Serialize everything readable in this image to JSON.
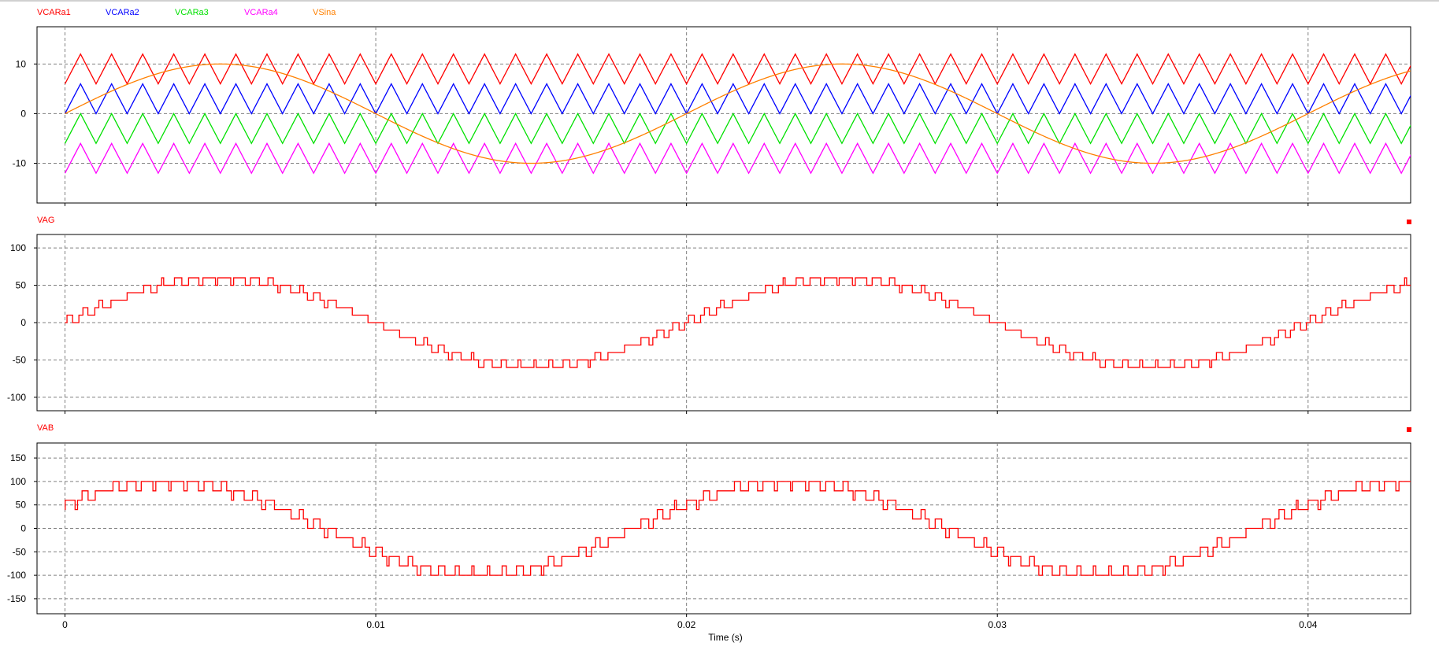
{
  "chart_data": [
    {
      "type": "line",
      "title": "",
      "xlabel": "",
      "ylabel": "",
      "xlim": [
        -0.0009,
        0.0433
      ],
      "ylim": [
        -18,
        17.5
      ],
      "yticks": [
        10,
        0,
        -10
      ],
      "ytick_labels": [
        "10",
        "0",
        "-10"
      ],
      "grid": true,
      "legend": "top-left",
      "series": [
        {
          "name": "VCARa1",
          "color": "#ff0000",
          "waveform": "triangle",
          "min": 6,
          "max": 12,
          "period": 0.001,
          "start_phase": "min"
        },
        {
          "name": "VCARa2",
          "color": "#0000ff",
          "waveform": "triangle",
          "min": 0,
          "max": 6,
          "period": 0.001,
          "start_phase": "min"
        },
        {
          "name": "VCARa3",
          "color": "#00e000",
          "waveform": "triangle",
          "min": -6,
          "max": 0,
          "period": 0.001,
          "start_phase": "min"
        },
        {
          "name": "VCARa4",
          "color": "#ff00ff",
          "waveform": "triangle",
          "min": -12,
          "max": -6,
          "period": 0.001,
          "start_phase": "min"
        },
        {
          "name": "VSina",
          "color": "#ff8000",
          "waveform": "sine",
          "amplitude": 10,
          "frequency_hz": 50
        }
      ]
    },
    {
      "type": "line",
      "title": "",
      "xlabel": "",
      "ylabel": "",
      "xlim": [
        -0.0009,
        0.0433
      ],
      "ylim": [
        -118,
        118
      ],
      "yticks": [
        100,
        50,
        0,
        -50,
        -100
      ],
      "ytick_labels": [
        "100",
        "50",
        "0",
        "-50",
        "-100"
      ],
      "grid": true,
      "legend": "top-left",
      "series": [
        {
          "name": "VAG",
          "color": "#ff0000",
          "waveform": "multilevel-staircase",
          "step": 10,
          "max_level": 60,
          "frequency_hz": 50
        }
      ]
    },
    {
      "type": "line",
      "title": "",
      "xlabel": "Time (s)",
      "ylabel": "",
      "xlim": [
        -0.0009,
        0.0433
      ],
      "ylim": [
        -182,
        182
      ],
      "yticks": [
        150,
        100,
        50,
        0,
        -50,
        -100,
        -150
      ],
      "ytick_labels": [
        "150",
        "100",
        "50",
        "0",
        "-50",
        "-100",
        "-150"
      ],
      "xticks": [
        0,
        0.01,
        0.02,
        0.03,
        0.04
      ],
      "xtick_labels": [
        "0",
        "0.01",
        "0.02",
        "0.03",
        "0.04"
      ],
      "grid": true,
      "legend": "top-left",
      "series": [
        {
          "name": "VAB",
          "color": "#ff0000",
          "waveform": "multilevel-staircase",
          "step": 20,
          "max_level": 100,
          "frequency_hz": 50,
          "phase_deg": 30
        }
      ]
    }
  ]
}
